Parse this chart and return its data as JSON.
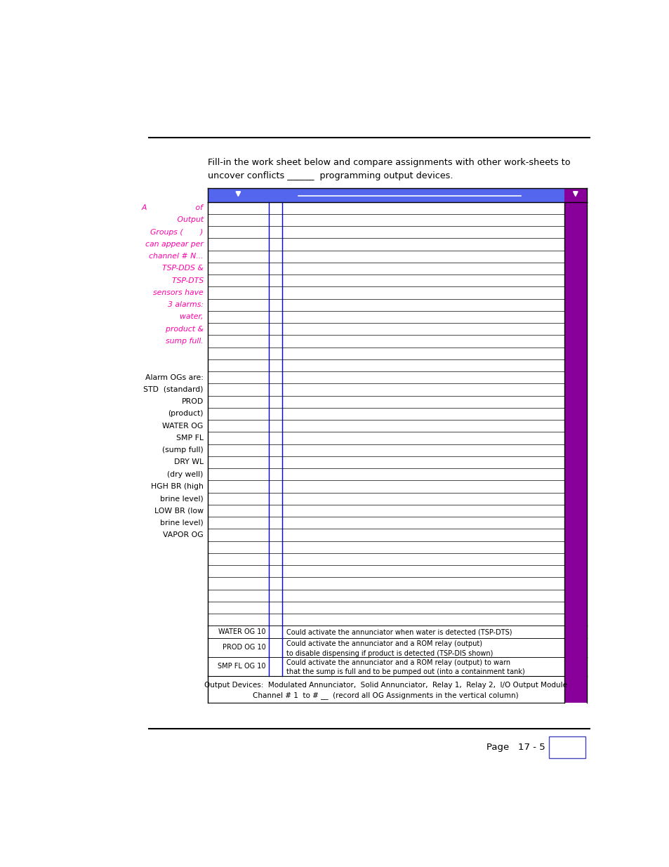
{
  "bg_color": "#ffffff",
  "intro_text_line1": "Fill-in the work sheet below and compare assignments with other work-sheets to",
  "intro_text_line2": "uncover conflicts ______  programming output devices.",
  "header_bg": "#5566ee",
  "header_right_bg": "#880099",
  "left_col_pink_color": "#ff00aa",
  "left_col_italic_lines": [
    "A                    of",
    "       Output",
    "Groups (       )",
    "can appear per",
    "channel # N...",
    "  TSP-DDS &",
    "  TSP-DTS",
    "  sensors have",
    "  3 alarms:",
    "  water,",
    "  product &",
    "  sump full."
  ],
  "left_col_black_lines": [
    "",
    "Alarm OGs are:",
    "STD  (standard)",
    "PROD",
    "(product)",
    "WATER OG",
    "SMP FL",
    "  (sump full)",
    "DRY WL",
    "  (dry well)",
    "HGH BR (high",
    "  brine level)",
    "LOW BR (low",
    "  brine level)",
    "VAPOR OG",
    "",
    "",
    "",
    "",
    "",
    "",
    ""
  ],
  "bottom_rows": [
    {
      "col1": "WATER OG 10",
      "col3": "Could activate the annunciator when water is detected (TSP-DTS)"
    },
    {
      "col1": "PROD OG 10",
      "col3": "Could activate the annunciator and a ROM relay (output)\nto disable dispensing if product is detected (TSP-DIS shown)"
    },
    {
      "col1": "SMP FL OG 10",
      "col3": "Could activate the annunciator and a ROM relay (output) to warn\nthat the sump is full and to be pumped out (into a containment tank)"
    }
  ],
  "footer_line1": "Output Devices:  Modulated Annunciator,  Solid Annunciator,  Relay 1,  Relay 2,  I/O Output Module",
  "footer_line2": "Channel # 1  to # __  (record all OG Assignments in the vertical column)",
  "page_text": "Page   17 - 5"
}
